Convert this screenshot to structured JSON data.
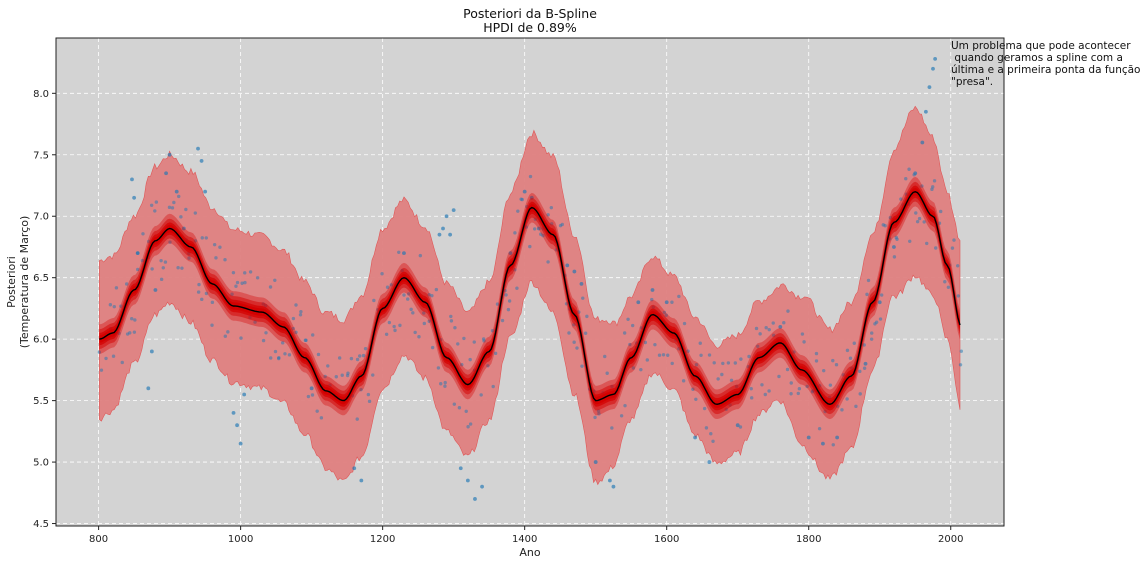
{
  "chart_data": {
    "type": "line",
    "title": "Posteriori da B-Spline",
    "subtitle": "HPDI de 0.89%",
    "xlabel": "Ano",
    "ylabel_line1": "Posteriori",
    "ylabel_line2": "(Temperatura de Março)",
    "xlim": [
      740,
      2075
    ],
    "ylim": [
      4.48,
      8.45
    ],
    "xticks": [
      800,
      1000,
      1200,
      1400,
      1600,
      1800,
      2000
    ],
    "yticks": [
      4.5,
      5.0,
      5.5,
      6.0,
      6.5,
      7.0,
      7.5,
      8.0
    ],
    "grid": true,
    "background": "#d3d3d3",
    "colors": {
      "hpdi_band": "#e08080",
      "hpdi_edge": "#e05050",
      "posterior_samples": "#d40000",
      "mean_line": "#000000",
      "observations": "#1f77b4"
    },
    "annotation": {
      "line1": "Um problema que pode acontecer",
      "line2": " quando geramos a spline com a",
      "line3": "última e a primeira ponta da função",
      "line4": "\"presa\"."
    },
    "mean_curve": {
      "x": [
        801,
        820,
        850,
        880,
        900,
        930,
        960,
        990,
        1030,
        1060,
        1090,
        1120,
        1145,
        1170,
        1200,
        1230,
        1260,
        1290,
        1320,
        1350,
        1380,
        1410,
        1440,
        1470,
        1500,
        1525,
        1550,
        1580,
        1610,
        1640,
        1670,
        1700,
        1730,
        1760,
        1790,
        1830,
        1860,
        1890,
        1920,
        1950,
        1975,
        1995,
        2015
      ],
      "y": [
        6.0,
        6.05,
        6.4,
        6.8,
        6.9,
        6.75,
        6.45,
        6.27,
        6.22,
        6.1,
        5.85,
        5.58,
        5.5,
        5.7,
        6.25,
        6.5,
        6.3,
        5.85,
        5.63,
        5.9,
        6.6,
        7.07,
        6.85,
        6.2,
        5.5,
        5.55,
        5.85,
        6.2,
        6.05,
        5.7,
        5.47,
        5.55,
        5.85,
        5.97,
        5.75,
        5.47,
        5.7,
        6.3,
        6.95,
        7.2,
        7.0,
        6.6,
        6.1
      ]
    },
    "hpdi_halfwidth": {
      "x": [
        801,
        850,
        900,
        950,
        1000,
        1050,
        1100,
        1150,
        1200,
        1250,
        1300,
        1350,
        1400,
        1450,
        1500,
        1550,
        1600,
        1650,
        1700,
        1750,
        1800,
        1850,
        1900,
        1950,
        2000,
        2015
      ],
      "w": [
        0.64,
        0.6,
        0.6,
        0.62,
        0.62,
        0.62,
        0.62,
        0.66,
        0.65,
        0.62,
        0.6,
        0.56,
        0.6,
        0.64,
        0.66,
        0.5,
        0.46,
        0.48,
        0.48,
        0.45,
        0.62,
        0.6,
        0.55,
        0.68,
        0.6,
        0.7
      ]
    },
    "observations": {
      "x": [
        847,
        850,
        855,
        870,
        875,
        880,
        895,
        900,
        910,
        920,
        940,
        945,
        950,
        990,
        995,
        1000,
        1005,
        1100,
        1160,
        1170,
        1230,
        1280,
        1285,
        1290,
        1295,
        1300,
        1310,
        1320,
        1330,
        1340,
        1380,
        1400,
        1410,
        1420,
        1460,
        1470,
        1480,
        1500,
        1520,
        1525,
        1560,
        1580,
        1600,
        1640,
        1660,
        1700,
        1740,
        1760,
        1800,
        1820,
        1840,
        1880,
        1900,
        1920,
        1940,
        1950,
        1960,
        1965,
        1970,
        1975,
        1978
      ],
      "y": [
        7.3,
        7.15,
        6.7,
        5.6,
        5.9,
        6.4,
        7.35,
        7.5,
        7.2,
        6.9,
        7.55,
        7.45,
        7.2,
        5.4,
        5.3,
        5.15,
        5.55,
        5.6,
        4.95,
        4.85,
        6.7,
        6.85,
        6.9,
        7.0,
        6.85,
        7.05,
        4.95,
        4.85,
        4.7,
        4.8,
        6.7,
        7.2,
        7.15,
        6.9,
        6.6,
        6.55,
        6.45,
        5.0,
        4.85,
        4.8,
        6.3,
        6.4,
        6.3,
        5.2,
        5.0,
        5.3,
        5.9,
        6.1,
        5.2,
        5.15,
        5.2,
        5.8,
        6.3,
        6.75,
        7.1,
        7.35,
        7.6,
        7.85,
        8.05,
        8.2,
        8.28
      ]
    }
  }
}
